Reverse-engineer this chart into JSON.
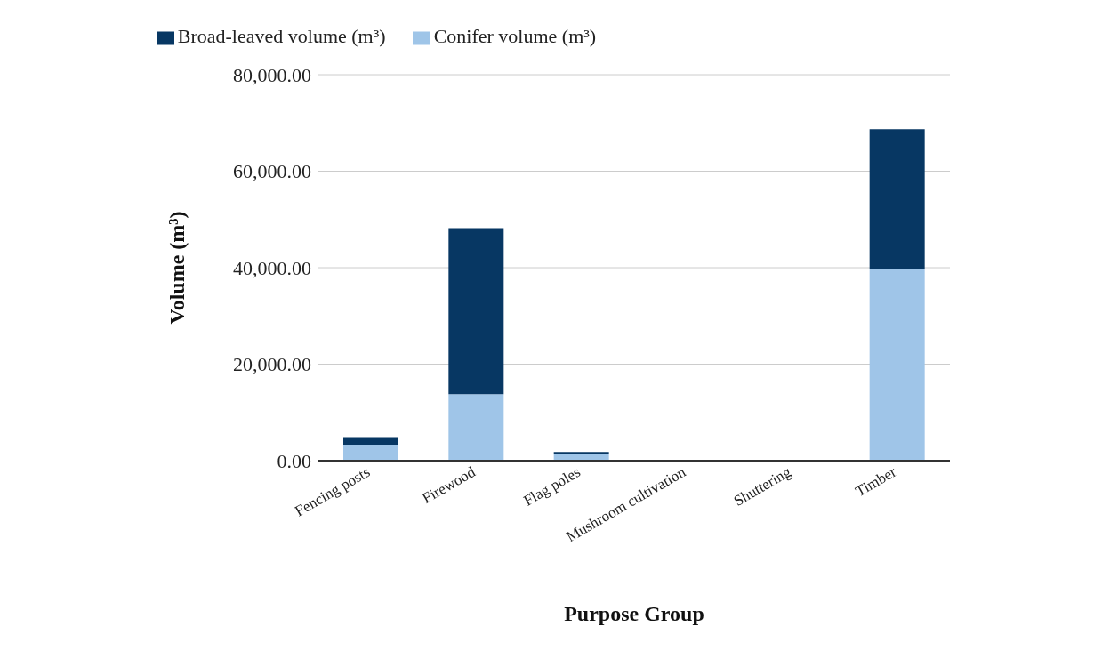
{
  "chart_data": {
    "type": "bar",
    "stacked": true,
    "xlabel": "Purpose Group",
    "ylabel": "Volume (m³)",
    "categories": [
      "Fencing posts",
      "Firewood",
      "Flag poles",
      "Mushroom cultivation",
      "Shuttering",
      "Timber"
    ],
    "series": [
      {
        "name": "Conifer volume (m³)",
        "color": "#9fc5e8",
        "values": [
          3300,
          13800,
          1400,
          0,
          0,
          39700
        ]
      },
      {
        "name": "Broad-leaved volume (m³)",
        "color": "#073763",
        "values": [
          1600,
          34400,
          400,
          0,
          0,
          29000
        ]
      }
    ],
    "ylim": [
      0,
      80000
    ],
    "yticks": [
      {
        "value": 0,
        "label": "0.00"
      },
      {
        "value": 20000,
        "label": "20,000.00"
      },
      {
        "value": 40000,
        "label": "40,000.00"
      },
      {
        "value": 60000,
        "label": "60,000.00"
      },
      {
        "value": 80000,
        "label": "80,000.00"
      }
    ],
    "grid": "y",
    "legend": "top"
  }
}
